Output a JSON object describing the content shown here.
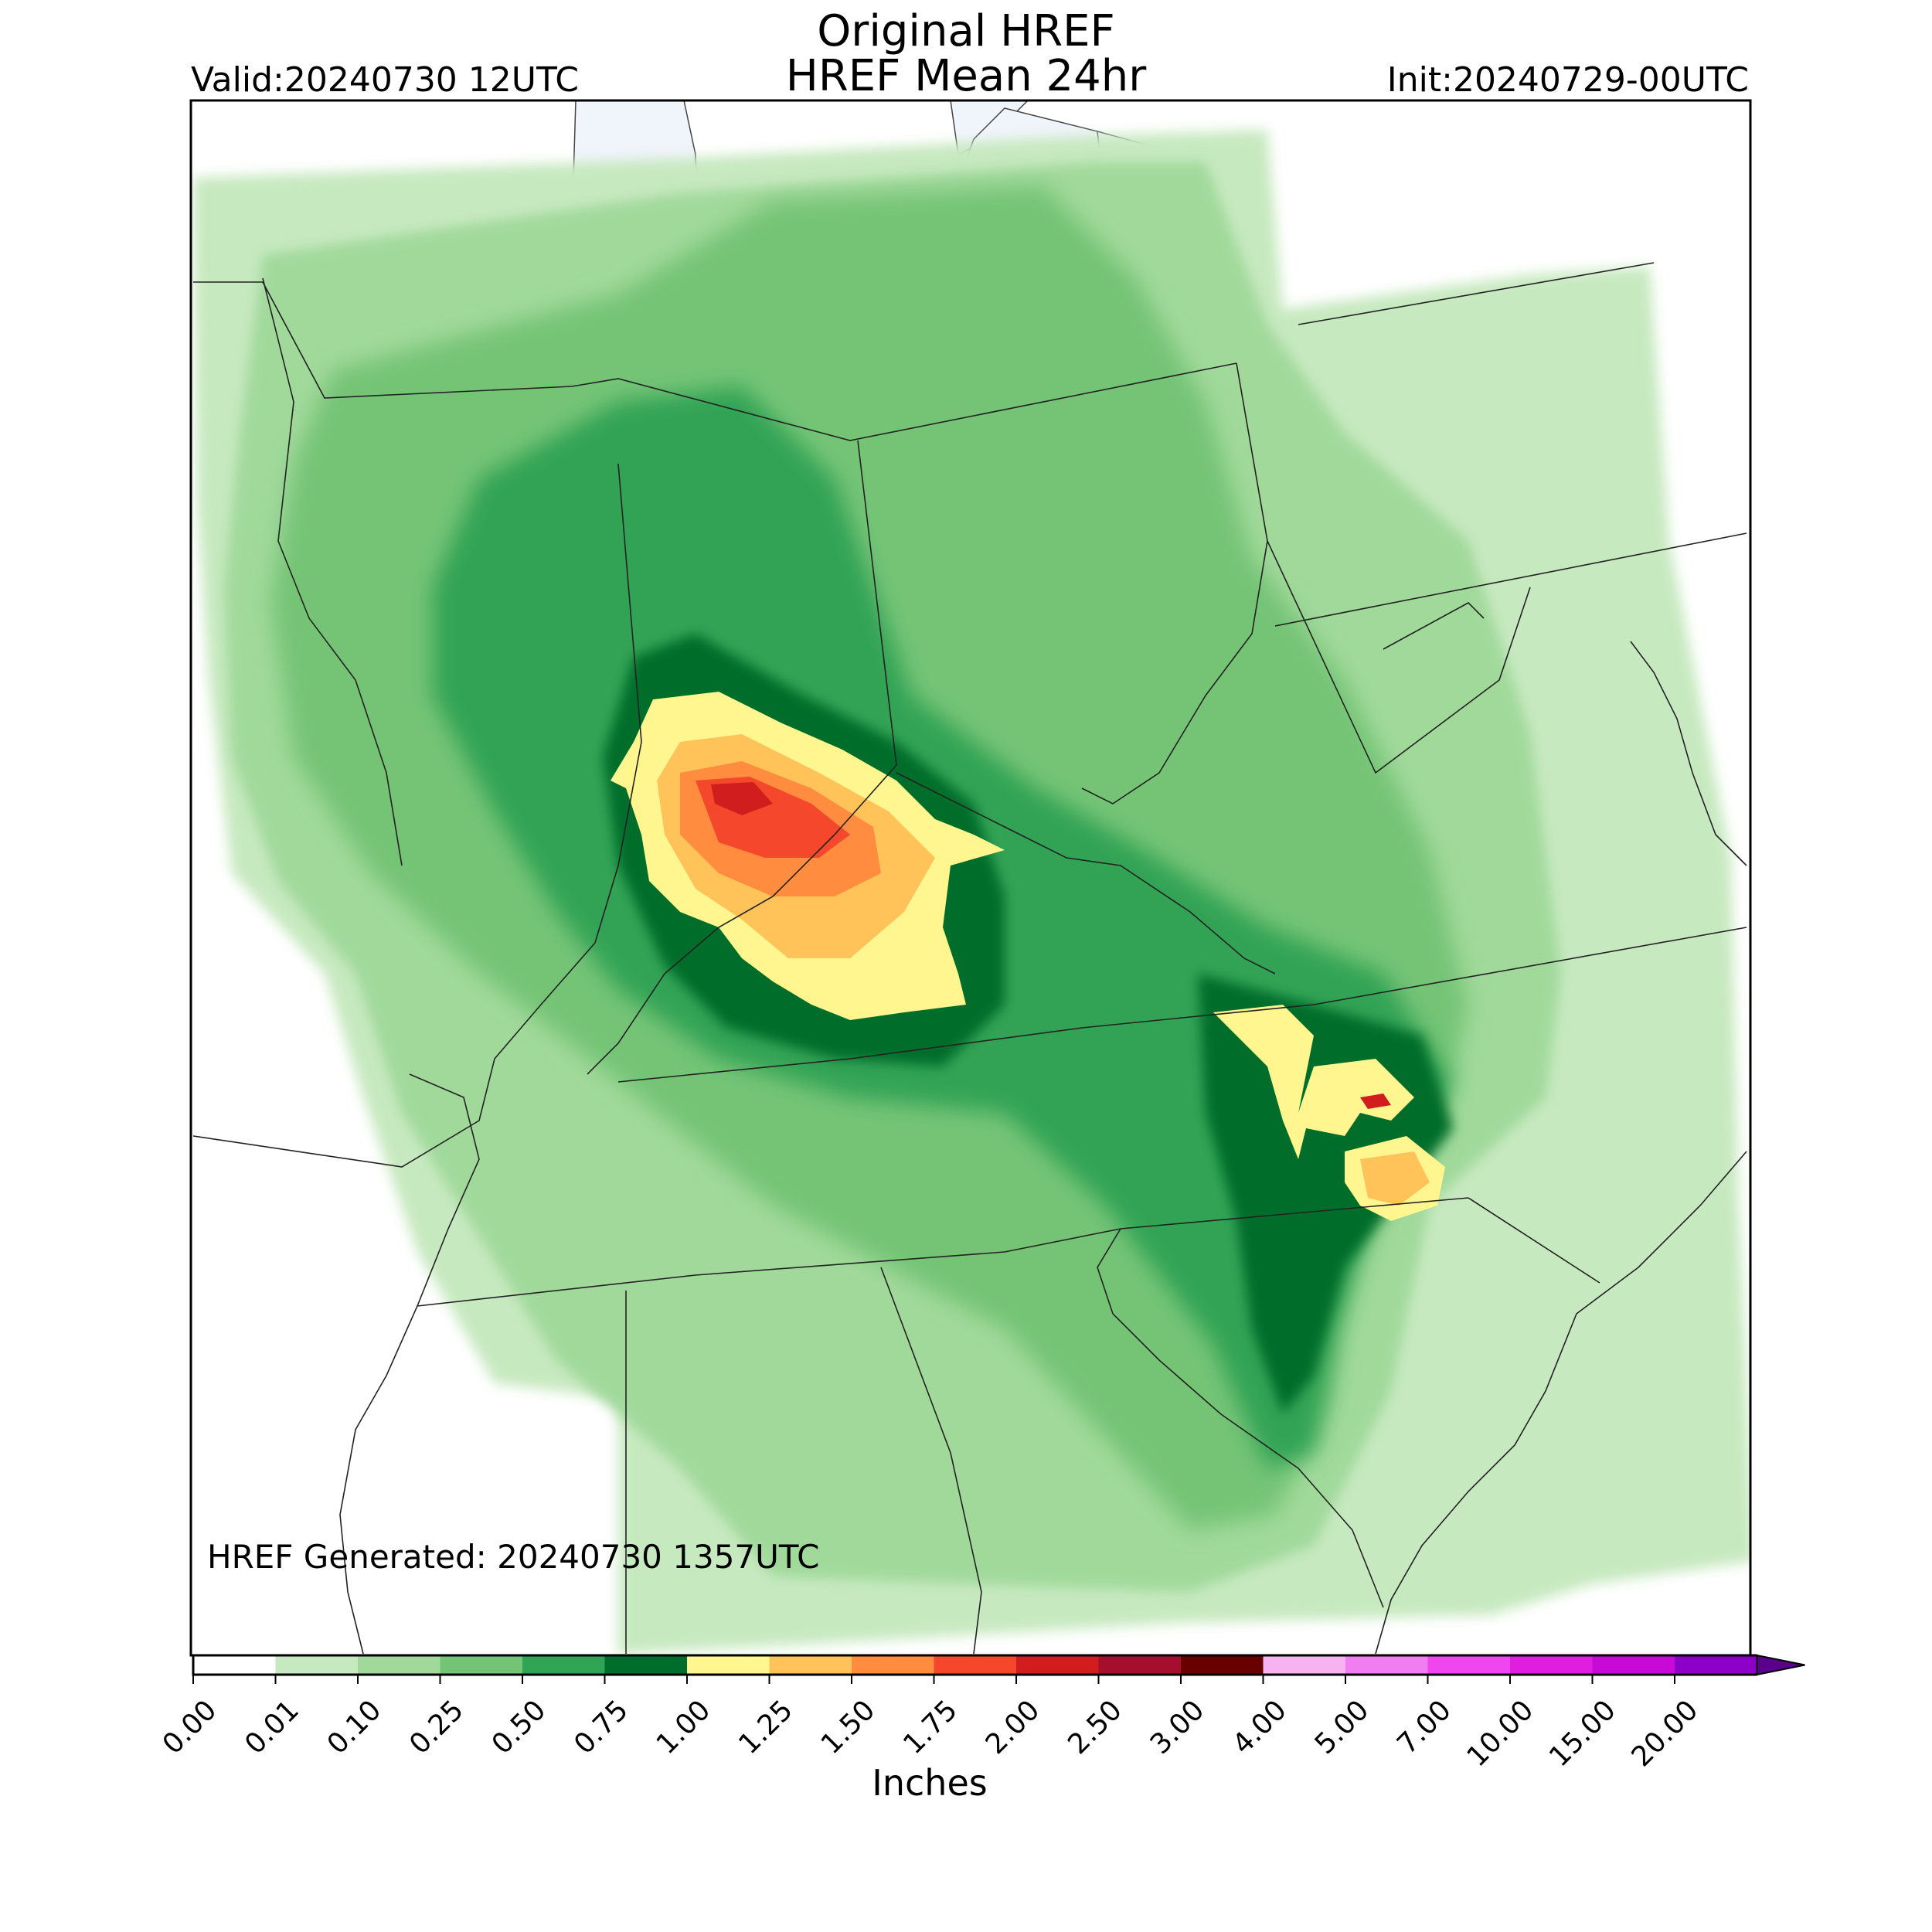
{
  "title": [
    "Original HREF",
    "HREF Mean 24hr"
  ],
  "valid": "Valid:20240730 12UTC",
  "init": "Init:20240729-00UTC",
  "generated": "HREF Generated: 20240730 1357UTC",
  "colorbar": {
    "label": "Inches",
    "ticks": [
      "0.00",
      "0.01",
      "0.10",
      "0.25",
      "0.50",
      "0.75",
      "1.00",
      "1.25",
      "1.50",
      "1.75",
      "2.00",
      "2.50",
      "3.00",
      "4.00",
      "5.00",
      "7.00",
      "10.00",
      "15.00",
      "20.00"
    ],
    "colors": [
      "#ffffff",
      "#c7e9c0",
      "#a1d99b",
      "#74c476",
      "#31a354",
      "#006d2c",
      "#fff68f",
      "#ffc35a",
      "#ff8c3f",
      "#f5472b",
      "#d11d1d",
      "#a50f2d",
      "#680000",
      "#f7b2f2",
      "#f07ef0",
      "#f046f0",
      "#e01ee0",
      "#c80ad7",
      "#8c00c8"
    ],
    "extend": "max",
    "extend_color": "#5a008c"
  },
  "map": {
    "water_color": "#f0f4fb",
    "region": "Eastern United States"
  }
}
